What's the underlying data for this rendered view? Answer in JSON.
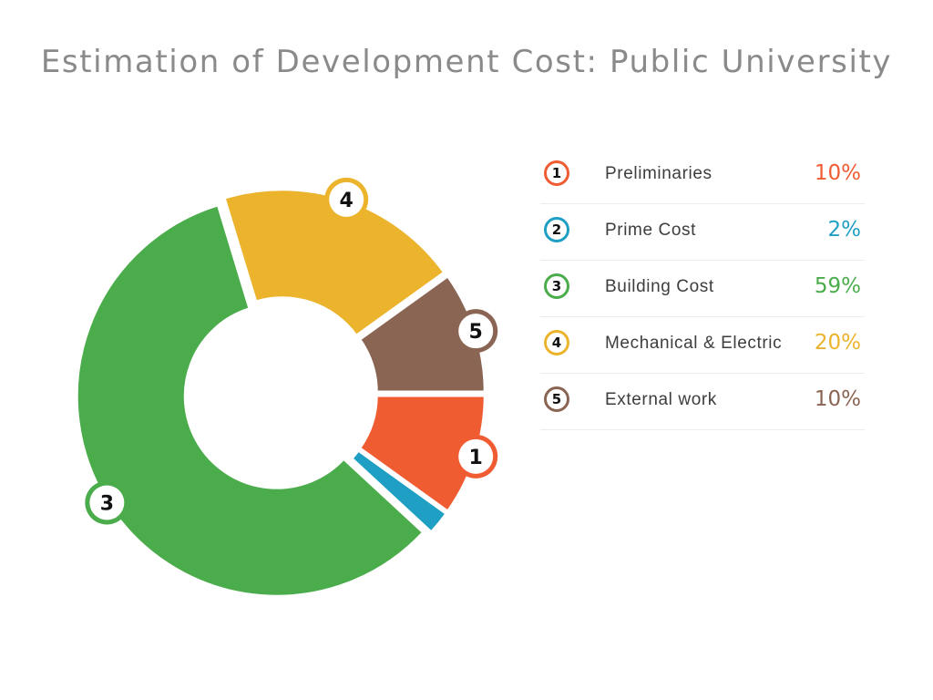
{
  "title": "Estimation of Development Cost: Public University",
  "chart_data": {
    "type": "pie",
    "variant": "donut",
    "title": "Estimation of Development Cost: Public University",
    "legend_placement": "right",
    "slices": [
      {
        "number": "1",
        "label": "Preliminaries",
        "value": 10,
        "value_label": "10%",
        "color": "#f05c32"
      },
      {
        "number": "2",
        "label": "Prime Cost",
        "value": 2,
        "value_label": "2%",
        "color": "#1e9fc3"
      },
      {
        "number": "3",
        "label": "Building Cost",
        "value": 59,
        "value_label": "59%",
        "color": "#4bac4b"
      },
      {
        "number": "4",
        "label": "Mechanical & Electric",
        "value": 20,
        "value_label": "20%",
        "color": "#ecb32c"
      },
      {
        "number": "5",
        "label": "External work",
        "value": 10,
        "value_label": "10%",
        "color": "#8b6553"
      }
    ]
  }
}
